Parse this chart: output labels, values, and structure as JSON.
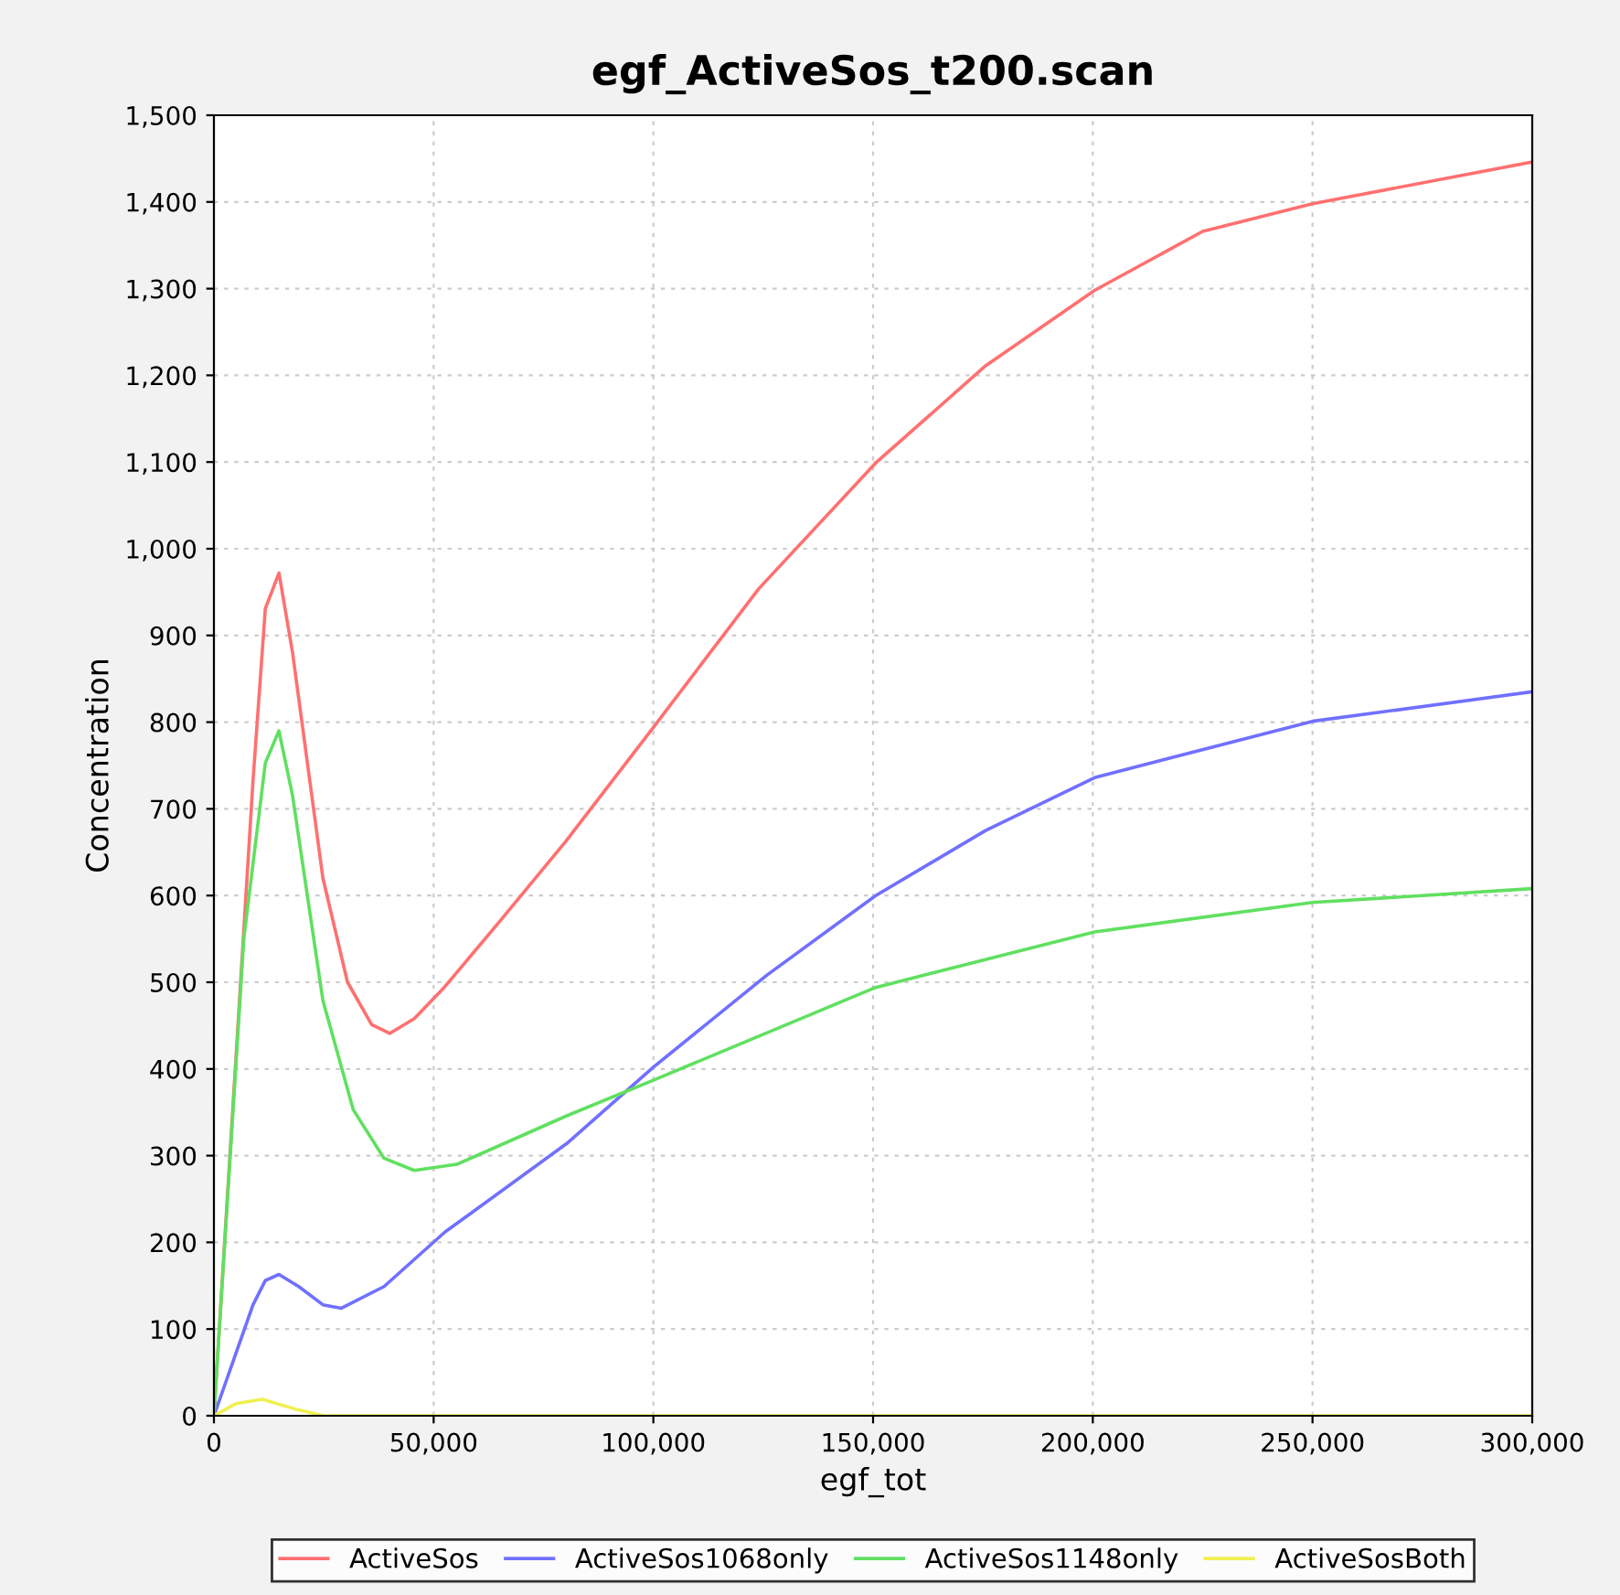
{
  "chart_data": {
    "type": "line",
    "title": "egf_ActiveSos_t200.scan",
    "xlabel": "egf_tot",
    "ylabel": "Concentration",
    "xlim": [
      0,
      300000
    ],
    "ylim": [
      0,
      1500
    ],
    "xticks": [
      {
        "value": 0,
        "label": "0"
      },
      {
        "value": 50000,
        "label": "50,000"
      },
      {
        "value": 100000,
        "label": "100,000"
      },
      {
        "value": 150000,
        "label": "150,000"
      },
      {
        "value": 200000,
        "label": "200,000"
      },
      {
        "value": 250000,
        "label": "250,000"
      },
      {
        "value": 300000,
        "label": "300,000"
      }
    ],
    "yticks": [
      {
        "value": 0,
        "label": "0"
      },
      {
        "value": 100,
        "label": "100"
      },
      {
        "value": 200,
        "label": "200"
      },
      {
        "value": 300,
        "label": "300"
      },
      {
        "value": 400,
        "label": "400"
      },
      {
        "value": 500,
        "label": "500"
      },
      {
        "value": 600,
        "label": "600"
      },
      {
        "value": 700,
        "label": "700"
      },
      {
        "value": 800,
        "label": "800"
      },
      {
        "value": 900,
        "label": "900"
      },
      {
        "value": 1000,
        "label": "1,000"
      },
      {
        "value": 1100,
        "label": "1,100"
      },
      {
        "value": 1200,
        "label": "1,200"
      },
      {
        "value": 1300,
        "label": "1,300"
      },
      {
        "value": 1400,
        "label": "1,400"
      },
      {
        "value": 1500,
        "label": "1,500"
      }
    ],
    "grid": true,
    "legend": "bottom",
    "marker": "none",
    "line_style": "solid",
    "series": [
      {
        "name": "ActiveSos",
        "color": "#ff7070",
        "x": [
          0,
          8900,
          11700,
          14800,
          17900,
          24800,
          30400,
          35900,
          40000,
          45600,
          52400,
          65000,
          80000,
          100000,
          124000,
          150600,
          175600,
          200400,
          225000,
          250000,
          300000
        ],
        "values": [
          0,
          733,
          931,
          972,
          880,
          620,
          500,
          451,
          441,
          458,
          494,
          570,
          662,
          794,
          954,
          1099,
          1211,
          1298,
          1366,
          1398,
          1446
        ]
      },
      {
        "name": "ActiveSos1068only",
        "color": "#7070ff",
        "x": [
          0,
          8900,
          11700,
          14800,
          19300,
          24800,
          29000,
          38700,
          52600,
          80300,
          100000,
          125800,
          150600,
          175600,
          200400,
          250000,
          300000
        ],
        "values": [
          0,
          128,
          156,
          163,
          149,
          128,
          124,
          149,
          212,
          314,
          402,
          508,
          600,
          675,
          736,
          801,
          835
        ]
      },
      {
        "name": "ActiveSos1148only",
        "color": "#60e060",
        "x": [
          0,
          6800,
          11700,
          14800,
          17900,
          24800,
          31700,
          38700,
          45600,
          55300,
          80300,
          100000,
          150600,
          200400,
          250000,
          300000
        ],
        "values": [
          0,
          550,
          753,
          790,
          715,
          479,
          353,
          297,
          283,
          290,
          346,
          387,
          494,
          558,
          592,
          608
        ]
      },
      {
        "name": "ActiveSosBoth",
        "color": "#f0f050",
        "x": [
          0,
          5000,
          11000,
          19000,
          25000,
          50000,
          100000,
          200000,
          300000
        ],
        "values": [
          0,
          14,
          19,
          7,
          0,
          0,
          0,
          0,
          0
        ]
      }
    ]
  }
}
